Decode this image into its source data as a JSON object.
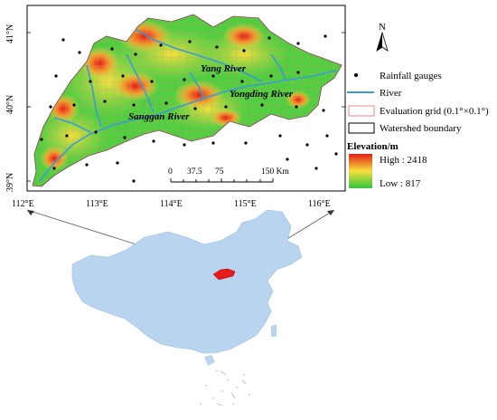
{
  "map": {
    "north_label": "N",
    "lat_ticks": [
      "41°N",
      "40°N",
      "39°N"
    ],
    "lon_ticks": [
      "112°E",
      "113°E",
      "114°E",
      "115°E",
      "116°E"
    ],
    "rivers": [
      "Yang River",
      "Yongding River",
      "Sanggan River"
    ],
    "scale_bar": {
      "labels": [
        "0",
        "37.5",
        "75",
        "150 Km"
      ]
    }
  },
  "legend": {
    "rain_gauges": "Rainfall gauges",
    "river": "River",
    "grid": "Evaluation grid (0.1°×0.1°)",
    "boundary": "Watershed boundary",
    "elevation_title": "Elevation/m",
    "high": "High : 2418",
    "low": "Low : 817"
  },
  "colors": {
    "river": "#3a9bd6",
    "grid": "#e88a8a",
    "china": "#b8d4ee",
    "watershed_highlight": "#e41a1c",
    "elev_high": "#e32018",
    "elev_mid": "#f5e03c",
    "elev_low": "#31c53a"
  }
}
